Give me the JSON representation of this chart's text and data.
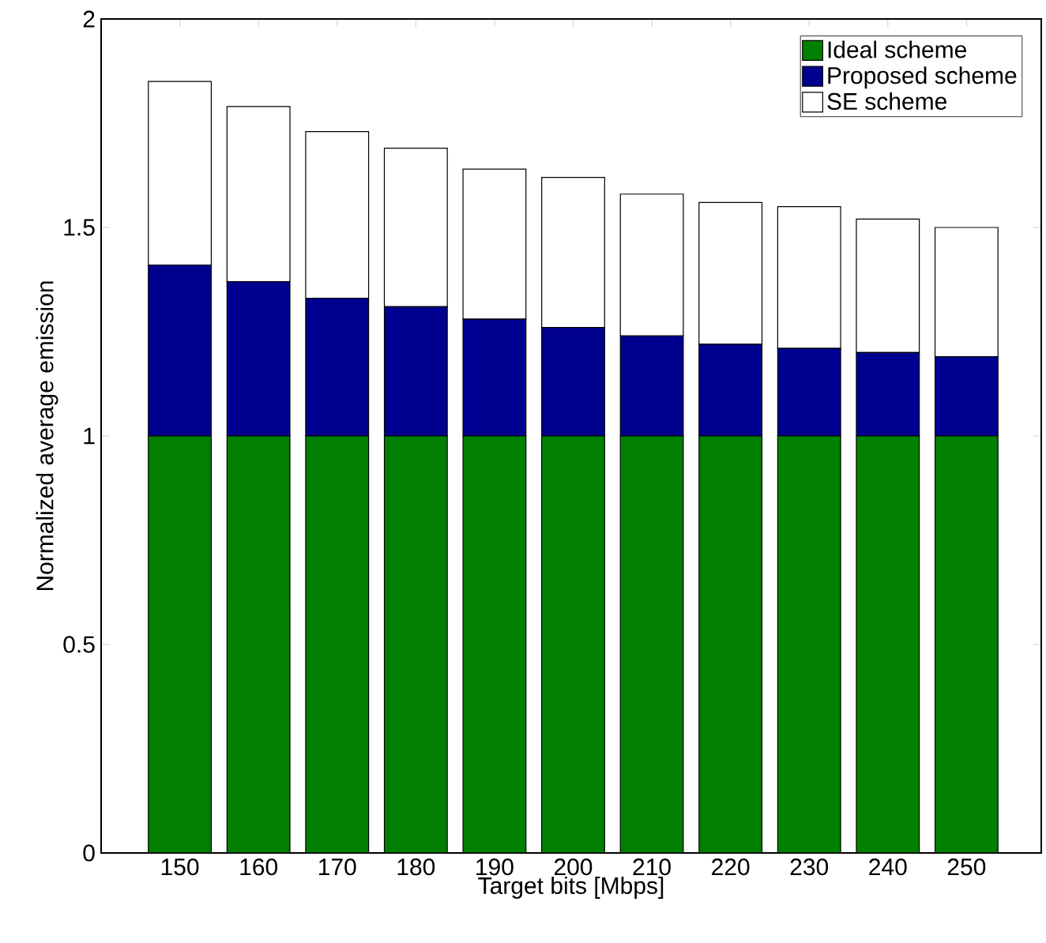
{
  "chart_data": {
    "type": "bar",
    "stacked": true,
    "xlabel": "Target bits [Mbps]",
    "ylabel": "Normalized average emission",
    "categories": [
      "150",
      "160",
      "170",
      "180",
      "190",
      "200",
      "210",
      "220",
      "230",
      "240",
      "250"
    ],
    "series": [
      {
        "name": "Ideal scheme",
        "color": "#007f00",
        "values": [
          1,
          1,
          1,
          1,
          1,
          1,
          1,
          1,
          1,
          1,
          1
        ]
      },
      {
        "name": "Proposed scheme",
        "color": "#000090",
        "values": [
          0.41,
          0.37,
          0.33,
          0.31,
          0.28,
          0.26,
          0.24,
          0.22,
          0.21,
          0.2,
          0.19
        ]
      },
      {
        "name": "SE scheme",
        "color": "#ffffff",
        "values": [
          0.44,
          0.42,
          0.4,
          0.38,
          0.36,
          0.36,
          0.34,
          0.34,
          0.34,
          0.32,
          0.31
        ]
      }
    ],
    "ylim": [
      0,
      2
    ],
    "yticks": [
      0,
      0.5,
      1,
      1.5,
      2
    ],
    "grid": false,
    "legend": "top right"
  }
}
